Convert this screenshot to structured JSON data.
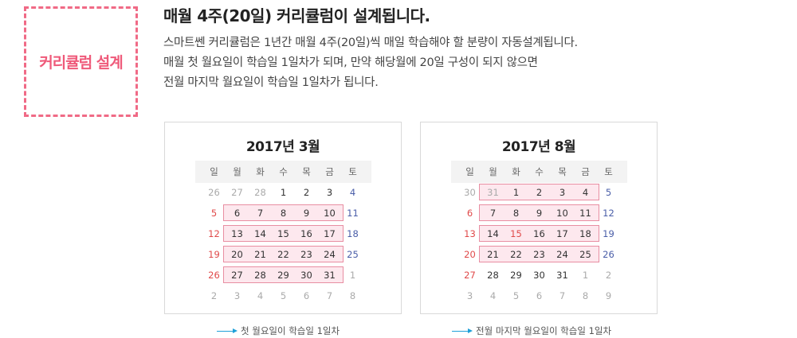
{
  "badge": {
    "label": "커리큘럼 설계"
  },
  "title": "매월 4주(20일) 커리큘럼이 설계됩니다.",
  "description": [
    "스마트쎈 커리큘럼은 1년간 매월 4주(20일)씩 매일 학습해야 할 분량이 자동설계됩니다.",
    "매월 첫 월요일이 학습일 1일차가 되며, 만약 해당월에 20일 구성이 되지 않으면",
    "전월 마지막 월요일이 학습일 1일차가 됩니다."
  ],
  "weekdays": [
    "일",
    "월",
    "화",
    "수",
    "목",
    "금",
    "토"
  ],
  "colors": {
    "accent": "#ef5a7a",
    "highlight_bg": "#fde8ee",
    "highlight_border": "#e88ea2",
    "sunday": "#e04a4a",
    "saturday": "#4a5ea8",
    "legend_arrow": "#1fa0d8"
  },
  "calendars": [
    {
      "title": "2017년 3월",
      "weeks": [
        [
          "26",
          "27",
          "28",
          "1",
          "2",
          "3",
          "4"
        ],
        [
          "5",
          "6",
          "7",
          "8",
          "9",
          "10",
          "11"
        ],
        [
          "12",
          "13",
          "14",
          "15",
          "16",
          "17",
          "18"
        ],
        [
          "19",
          "20",
          "21",
          "22",
          "23",
          "24",
          "25"
        ],
        [
          "26",
          "27",
          "28",
          "29",
          "30",
          "31",
          "1"
        ],
        [
          "2",
          "3",
          "4",
          "5",
          "6",
          "7",
          "8"
        ]
      ],
      "other_month": [
        [
          0,
          0
        ],
        [
          0,
          1
        ],
        [
          0,
          2
        ],
        [
          4,
          6
        ],
        [
          5,
          0
        ],
        [
          5,
          1
        ],
        [
          5,
          2
        ],
        [
          5,
          3
        ],
        [
          5,
          4
        ],
        [
          5,
          5
        ],
        [
          5,
          6
        ]
      ],
      "highlighted_weeks": [
        1,
        2,
        3,
        4
      ],
      "legend": "첫 월요일이 학습일 1일차"
    },
    {
      "title": "2017년 8월",
      "weeks": [
        [
          "30",
          "31",
          "1",
          "2",
          "3",
          "4",
          "5"
        ],
        [
          "6",
          "7",
          "8",
          "9",
          "10",
          "11",
          "12"
        ],
        [
          "13",
          "14",
          "15",
          "16",
          "17",
          "18",
          "19"
        ],
        [
          "20",
          "21",
          "22",
          "23",
          "24",
          "25",
          "26"
        ],
        [
          "27",
          "28",
          "29",
          "30",
          "31",
          "1",
          "2"
        ],
        [
          "3",
          "4",
          "5",
          "6",
          "7",
          "8",
          "9"
        ]
      ],
      "other_month": [
        [
          0,
          0
        ],
        [
          0,
          1
        ],
        [
          4,
          5
        ],
        [
          4,
          6
        ],
        [
          5,
          0
        ],
        [
          5,
          1
        ],
        [
          5,
          2
        ],
        [
          5,
          3
        ],
        [
          5,
          4
        ],
        [
          5,
          5
        ],
        [
          5,
          6
        ]
      ],
      "holidays": [
        [
          2,
          2
        ]
      ],
      "highlighted_weeks": [
        0,
        1,
        2,
        3
      ],
      "legend": "전월 마지막 월요일이 학습일 1일차"
    }
  ]
}
